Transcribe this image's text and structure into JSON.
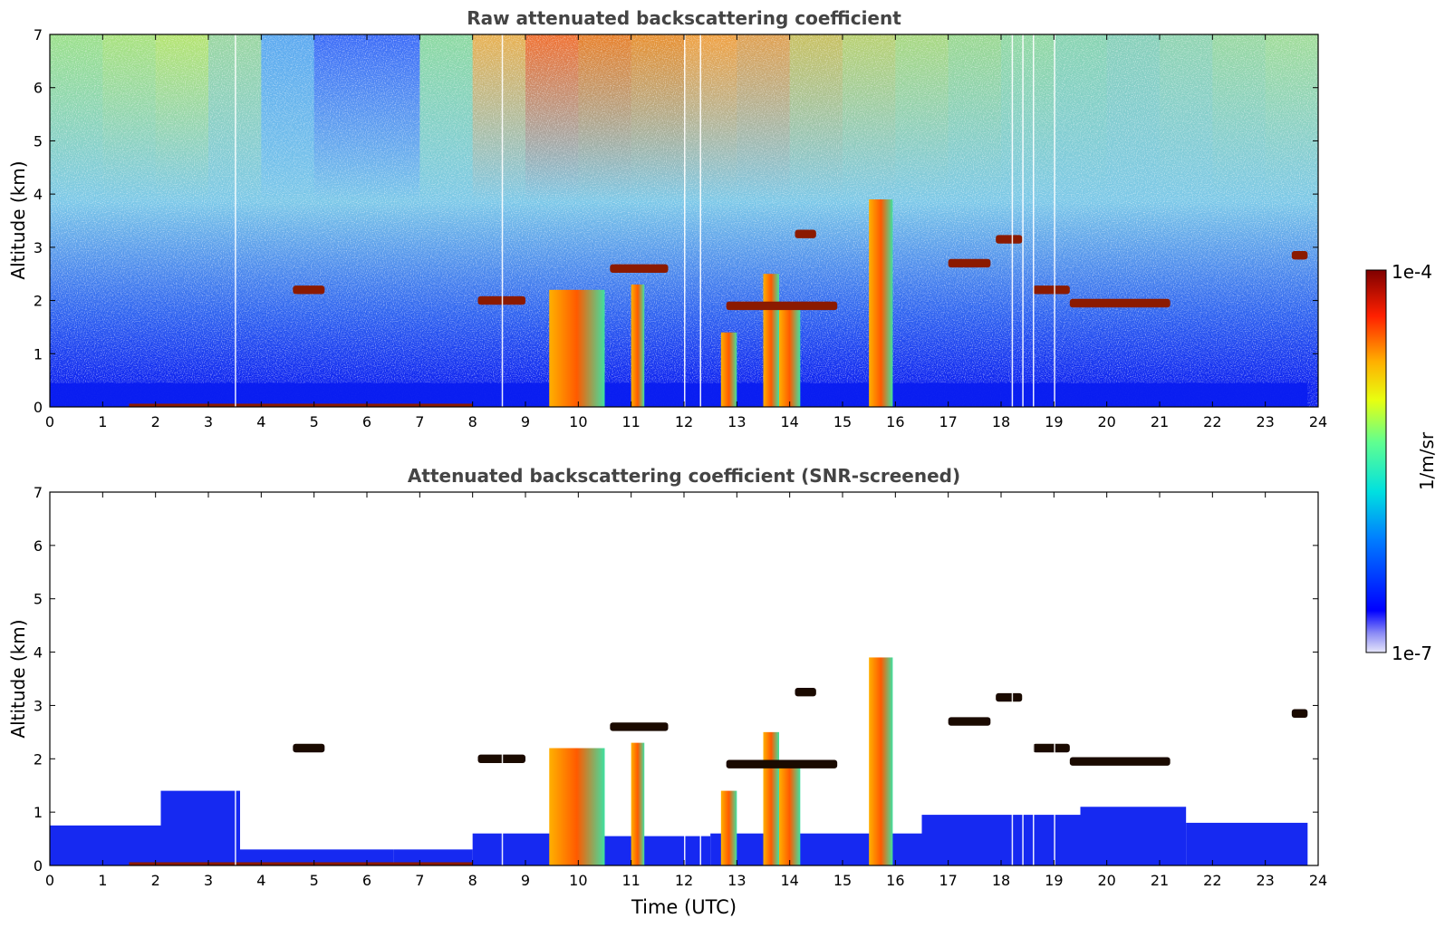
{
  "chart_data": [
    {
      "type": "heatmap",
      "title": "Raw attenuated backscattering coefficient",
      "xlabel": "",
      "ylabel": "Altitude (km)",
      "xlim": [
        0,
        24
      ],
      "ylim": [
        0,
        7
      ],
      "xticks": [
        "0",
        "1",
        "2",
        "3",
        "4",
        "5",
        "6",
        "7",
        "8",
        "9",
        "10",
        "11",
        "12",
        "13",
        "14",
        "15",
        "16",
        "17",
        "18",
        "19",
        "20",
        "21",
        "22",
        "23",
        "24"
      ],
      "yticks": [
        "0",
        "1",
        "2",
        "3",
        "4",
        "5",
        "6",
        "7"
      ],
      "grid": false,
      "features": {
        "surface_layer_top_km": 0.45,
        "cloud_layers": [
          {
            "t_start": 4.6,
            "t_end": 5.2,
            "alt_km": 2.2
          },
          {
            "t_start": 8.1,
            "t_end": 9.0,
            "alt_km": 2.0
          },
          {
            "t_start": 10.6,
            "t_end": 11.7,
            "alt_km": 2.6
          },
          {
            "t_start": 12.8,
            "t_end": 14.9,
            "alt_km": 1.9
          },
          {
            "t_start": 14.1,
            "t_end": 14.5,
            "alt_km": 3.25
          },
          {
            "t_start": 17.0,
            "t_end": 17.8,
            "alt_km": 2.7
          },
          {
            "t_start": 17.9,
            "t_end": 18.4,
            "alt_km": 3.15
          },
          {
            "t_start": 18.6,
            "t_end": 19.3,
            "alt_km": 2.2
          },
          {
            "t_start": 19.3,
            "t_end": 21.2,
            "alt_km": 1.95
          },
          {
            "t_start": 23.5,
            "t_end": 23.8,
            "alt_km": 2.85
          }
        ],
        "precipitation_columns": [
          {
            "t_start": 9.45,
            "t_end": 10.5,
            "top_km": 2.2
          },
          {
            "t_start": 11.0,
            "t_end": 11.25,
            "top_km": 2.3
          },
          {
            "t_start": 12.7,
            "t_end": 13.0,
            "top_km": 1.4
          },
          {
            "t_start": 13.5,
            "t_end": 13.8,
            "top_km": 2.5
          },
          {
            "t_start": 13.8,
            "t_end": 14.2,
            "top_km": 1.9
          },
          {
            "t_start": 15.5,
            "t_end": 15.95,
            "top_km": 3.9
          }
        ]
      }
    },
    {
      "type": "heatmap",
      "title": "Attenuated backscattering coefficient (SNR-screened)",
      "xlabel": "Time (UTC)",
      "ylabel": "Altitude (km)",
      "xlim": [
        0,
        24
      ],
      "ylim": [
        0,
        7
      ],
      "xticks": [
        "0",
        "1",
        "2",
        "3",
        "4",
        "5",
        "6",
        "7",
        "8",
        "9",
        "10",
        "11",
        "12",
        "13",
        "14",
        "15",
        "16",
        "17",
        "18",
        "19",
        "20",
        "21",
        "22",
        "23",
        "24"
      ],
      "yticks": [
        "0",
        "1",
        "2",
        "3",
        "4",
        "5",
        "6",
        "7"
      ],
      "grid": false
    }
  ],
  "colorbar": {
    "label": "1/m/sr",
    "max_label": "1e-4",
    "min_label": "1e-7",
    "colormap": "jet",
    "scale": "log",
    "range": [
      1e-07,
      0.0001
    ]
  },
  "colors": {
    "title_text": "#444444",
    "axis": "#000000",
    "surface_blue": "#0a1ef0",
    "cloud_dark_red": "#8b1a00"
  }
}
